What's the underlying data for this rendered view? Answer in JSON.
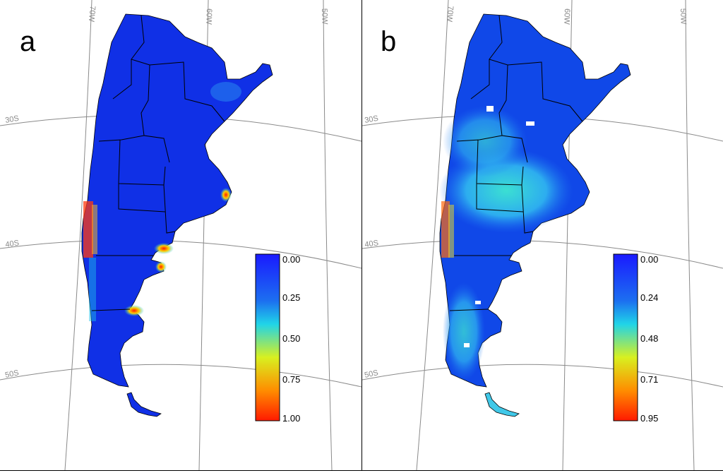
{
  "figure": {
    "panels": [
      {
        "id": "a",
        "letter": "a",
        "colorbar": {
          "ticks": [
            "0.00",
            "0.25",
            "0.50",
            "0.75",
            "1.00"
          ],
          "min": 0.0,
          "max": 1.0
        }
      },
      {
        "id": "b",
        "letter": "b",
        "colorbar": {
          "ticks": [
            "0.00",
            "0.24",
            "0.48",
            "0.71",
            "0.95"
          ],
          "min": 0.0,
          "max": 0.95
        }
      }
    ],
    "graticule": {
      "meridians": [
        "70W",
        "60W",
        "50W"
      ],
      "parallels": [
        "30S",
        "40S",
        "50S"
      ]
    },
    "colors": {
      "land_base": "#1030e6",
      "colormap": [
        "#1a1aff",
        "#1c6ff0",
        "#20d4e8",
        "#d8f020",
        "#ff8c00",
        "#ff1a00"
      ],
      "graticule": "#8a8a8a",
      "border": "#000000"
    }
  }
}
